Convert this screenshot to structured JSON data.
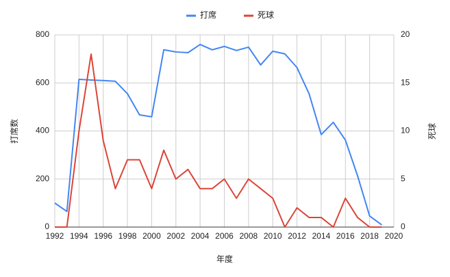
{
  "chart_data": {
    "type": "line",
    "x_label": "年度",
    "y_label": "打席数",
    "y2_label": "死球",
    "x": [
      1992,
      1993,
      1994,
      1995,
      1996,
      1997,
      1998,
      1999,
      2000,
      2001,
      2002,
      2003,
      2004,
      2005,
      2006,
      2007,
      2008,
      2009,
      2010,
      2011,
      2012,
      2013,
      2014,
      2015,
      2016,
      2017,
      2018,
      2019
    ],
    "series": [
      {
        "name": "打席",
        "color": "#4285f4",
        "values": [
          100,
          65,
          615,
          612,
          610,
          607,
          555,
          467,
          459,
          738,
          729,
          726,
          760,
          738,
          752,
          735,
          749,
          675,
          732,
          721,
          664,
          555,
          385,
          436,
          362,
          214,
          46,
          9
        ]
      },
      {
        "name": "死球",
        "color": "#db4437",
        "axis": "y2",
        "values": [
          0,
          0,
          10,
          18,
          9,
          4,
          7,
          7,
          4,
          8,
          5,
          6,
          4,
          4,
          5,
          3,
          5,
          4,
          3,
          0,
          2,
          1,
          1,
          0,
          3,
          1,
          0,
          0
        ]
      }
    ],
    "xlim": [
      1992,
      2020
    ],
    "xticks": [
      1992,
      1994,
      1996,
      1998,
      2000,
      2002,
      2004,
      2006,
      2008,
      2010,
      2012,
      2014,
      2016,
      2018,
      2020
    ],
    "ylim": [
      0,
      800
    ],
    "yticks": [
      0,
      200,
      400,
      600,
      800
    ],
    "y2lim": [
      0,
      20
    ],
    "y2ticks": [
      0,
      5,
      10,
      15,
      20
    ],
    "grid": true,
    "legend": "top"
  }
}
